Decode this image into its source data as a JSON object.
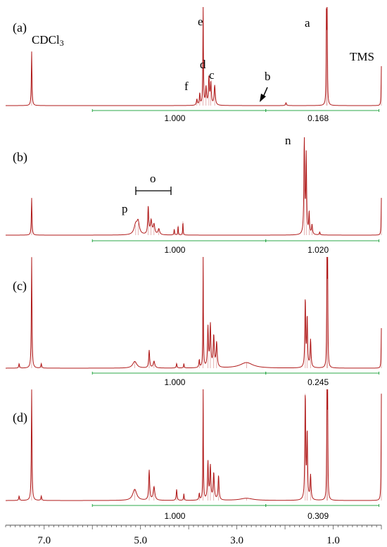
{
  "chart_data": {
    "type": "line",
    "x_axis": {
      "reversed": true,
      "min": 0.0,
      "max": 7.8,
      "major_ticks": [
        7.0,
        5.0,
        3.0,
        1.0
      ],
      "tick_labels": [
        "7.0",
        "5.0",
        "3.0",
        "1.0"
      ]
    },
    "colors": {
      "spectrum": "#b01a1a",
      "integral": "#2ea84a"
    },
    "panels": [
      {
        "label": "(a)",
        "baseline_at": 0.6,
        "peaks": [
          {
            "x": 7.26,
            "h": 0.55,
            "w": 0.008
          },
          {
            "x": 3.83,
            "h": 0.06,
            "w": 0.012
          },
          {
            "x": 3.77,
            "h": 0.12,
            "w": 0.01
          },
          {
            "x": 3.7,
            "h": 1.0,
            "w": 0.007
          },
          {
            "x": 3.64,
            "h": 0.18,
            "w": 0.012
          },
          {
            "x": 3.58,
            "h": 0.28,
            "w": 0.012
          },
          {
            "x": 3.54,
            "h": 0.22,
            "w": 0.012
          },
          {
            "x": 3.46,
            "h": 0.2,
            "w": 0.014
          },
          {
            "x": 1.98,
            "h": 0.03,
            "w": 0.012
          },
          {
            "x": 1.14,
            "h": 1.0,
            "w": 0.006
          },
          {
            "x": 1.125,
            "h": 0.92,
            "w": 0.006
          },
          {
            "x": 0.0,
            "h": 0.4,
            "w": 0.006
          }
        ],
        "peak_labels": [
          {
            "text": "CDCl",
            "sub": "3",
            "x": 7.26
          },
          {
            "text": "e",
            "x": 3.63
          },
          {
            "text": "d",
            "x": 3.55
          },
          {
            "text": "c",
            "x": 3.37
          },
          {
            "text": "f",
            "x": 3.88
          },
          {
            "text": "b",
            "x": 1.97
          },
          {
            "text": "a",
            "x": 1.05
          },
          {
            "text": "TMS",
            "x": -0.05
          }
        ],
        "integrals": [
          {
            "from": 6.0,
            "to": 2.4,
            "value": "1.000"
          },
          {
            "from": 2.4,
            "to": 0.05,
            "value": "0.168"
          }
        ]
      },
      {
        "label": "(b)",
        "baseline_at": 0.6,
        "peaks": [
          {
            "x": 7.26,
            "h": 0.38,
            "w": 0.008
          },
          {
            "x": 5.1,
            "h": 0.1,
            "w": 0.04
          },
          {
            "x": 5.05,
            "h": 0.12,
            "w": 0.03
          },
          {
            "x": 4.84,
            "h": 0.28,
            "w": 0.012
          },
          {
            "x": 4.78,
            "h": 0.14,
            "w": 0.02
          },
          {
            "x": 4.72,
            "h": 0.1,
            "w": 0.02
          },
          {
            "x": 4.62,
            "h": 0.06,
            "w": 0.02
          },
          {
            "x": 4.3,
            "h": 0.06,
            "w": 0.008
          },
          {
            "x": 4.22,
            "h": 0.1,
            "w": 0.006
          },
          {
            "x": 4.12,
            "h": 0.14,
            "w": 0.006
          },
          {
            "x": 1.6,
            "h": 1.0,
            "w": 0.01
          },
          {
            "x": 1.56,
            "h": 0.8,
            "w": 0.01
          },
          {
            "x": 1.5,
            "h": 0.22,
            "w": 0.01
          },
          {
            "x": 1.44,
            "h": 0.1,
            "w": 0.012
          },
          {
            "x": 1.28,
            "h": 0.03,
            "w": 0.01
          },
          {
            "x": 0.0,
            "h": 0.38,
            "w": 0.006
          }
        ],
        "peak_labels": [
          {
            "text": "n",
            "x": 1.45
          },
          {
            "text": "p",
            "x": 5.2
          },
          {
            "text": "o",
            "x": 4.45
          }
        ],
        "integrals": [
          {
            "from": 6.0,
            "to": 2.4,
            "value": "1.000"
          },
          {
            "from": 2.4,
            "to": 0.05,
            "value": "1.020"
          }
        ]
      },
      {
        "label": "(c)",
        "baseline_at": 0.6,
        "peaks": [
          {
            "x": 7.26,
            "h": 1.0,
            "w": 0.008
          },
          {
            "x": 7.52,
            "h": 0.04,
            "w": 0.01
          },
          {
            "x": 7.06,
            "h": 0.04,
            "w": 0.01
          },
          {
            "x": 5.12,
            "h": 0.06,
            "w": 0.05
          },
          {
            "x": 4.82,
            "h": 0.16,
            "w": 0.012
          },
          {
            "x": 4.72,
            "h": 0.06,
            "w": 0.02
          },
          {
            "x": 4.25,
            "h": 0.04,
            "w": 0.01
          },
          {
            "x": 4.1,
            "h": 0.04,
            "w": 0.008
          },
          {
            "x": 3.78,
            "h": 0.07,
            "w": 0.01
          },
          {
            "x": 3.7,
            "h": 1.0,
            "w": 0.006
          },
          {
            "x": 3.6,
            "h": 0.36,
            "w": 0.012
          },
          {
            "x": 3.55,
            "h": 0.38,
            "w": 0.012
          },
          {
            "x": 3.48,
            "h": 0.28,
            "w": 0.014
          },
          {
            "x": 3.42,
            "h": 0.22,
            "w": 0.014
          },
          {
            "x": 2.8,
            "h": 0.05,
            "w": 0.16
          },
          {
            "x": 1.58,
            "h": 0.62,
            "w": 0.01
          },
          {
            "x": 1.54,
            "h": 0.45,
            "w": 0.01
          },
          {
            "x": 1.47,
            "h": 0.25,
            "w": 0.012
          },
          {
            "x": 1.13,
            "h": 1.0,
            "w": 0.006
          },
          {
            "x": 1.115,
            "h": 0.9,
            "w": 0.006
          },
          {
            "x": 0.0,
            "h": 0.36,
            "w": 0.006
          }
        ],
        "peak_labels": [],
        "integrals": [
          {
            "from": 6.0,
            "to": 2.4,
            "value": "1.000"
          },
          {
            "from": 2.4,
            "to": 0.05,
            "value": "0.245"
          }
        ]
      },
      {
        "label": "(d)",
        "baseline_at": 0.6,
        "peaks": [
          {
            "x": 7.26,
            "h": 1.0,
            "w": 0.008
          },
          {
            "x": 7.52,
            "h": 0.04,
            "w": 0.01
          },
          {
            "x": 7.06,
            "h": 0.04,
            "w": 0.01
          },
          {
            "x": 5.12,
            "h": 0.1,
            "w": 0.05
          },
          {
            "x": 4.82,
            "h": 0.27,
            "w": 0.012
          },
          {
            "x": 4.72,
            "h": 0.12,
            "w": 0.02
          },
          {
            "x": 4.25,
            "h": 0.1,
            "w": 0.01
          },
          {
            "x": 4.1,
            "h": 0.06,
            "w": 0.008
          },
          {
            "x": 3.78,
            "h": 0.06,
            "w": 0.01
          },
          {
            "x": 3.7,
            "h": 1.0,
            "w": 0.006
          },
          {
            "x": 3.6,
            "h": 0.34,
            "w": 0.012
          },
          {
            "x": 3.55,
            "h": 0.3,
            "w": 0.012
          },
          {
            "x": 3.48,
            "h": 0.24,
            "w": 0.014
          },
          {
            "x": 3.38,
            "h": 0.22,
            "w": 0.012
          },
          {
            "x": 2.8,
            "h": 0.02,
            "w": 0.16
          },
          {
            "x": 1.58,
            "h": 0.96,
            "w": 0.01
          },
          {
            "x": 1.54,
            "h": 0.6,
            "w": 0.01
          },
          {
            "x": 1.47,
            "h": 0.22,
            "w": 0.012
          },
          {
            "x": 1.13,
            "h": 1.0,
            "w": 0.006
          },
          {
            "x": 1.115,
            "h": 0.92,
            "w": 0.006
          },
          {
            "x": 0.0,
            "h": 0.96,
            "w": 0.006
          }
        ],
        "peak_labels": [],
        "integrals": [
          {
            "from": 6.0,
            "to": 2.4,
            "value": "1.000"
          },
          {
            "from": 2.4,
            "to": 0.05,
            "value": "0.309"
          }
        ]
      }
    ]
  }
}
